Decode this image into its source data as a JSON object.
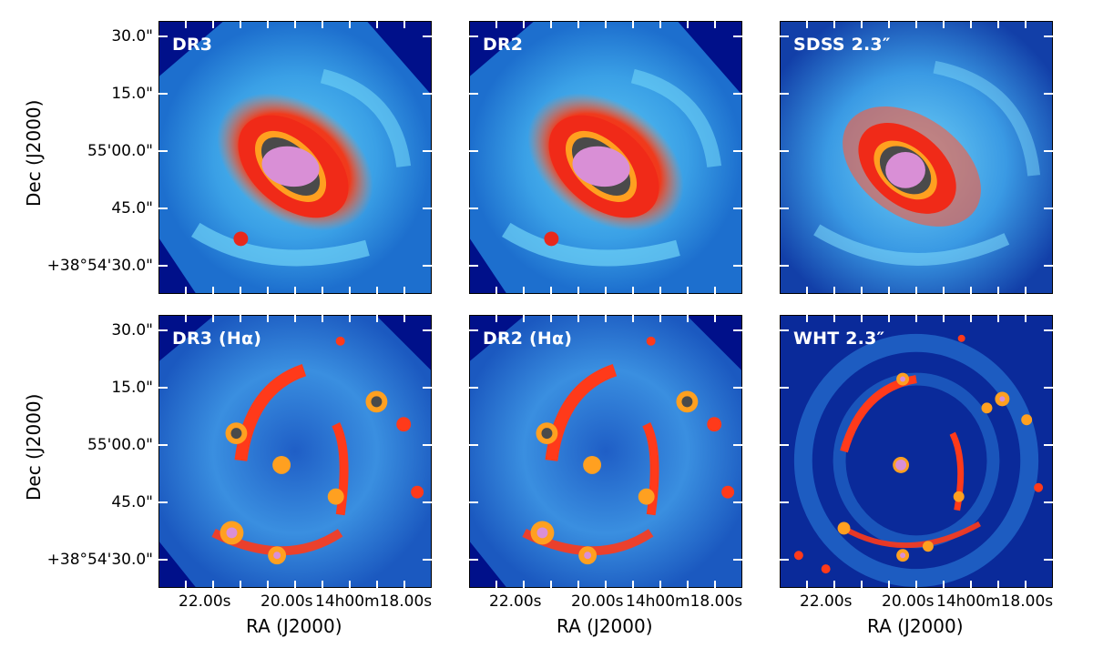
{
  "panels": [
    {
      "label": "DR3",
      "type": "continuum"
    },
    {
      "label": "DR2",
      "type": "continuum"
    },
    {
      "label": "SDSS 2.3″",
      "type": "continuum-smooth"
    },
    {
      "label": "DR3 (Hα)",
      "type": "halpha"
    },
    {
      "label": "DR2 (Hα)",
      "type": "halpha"
    },
    {
      "label": "WHT 2.3″",
      "type": "halpha-smooth"
    }
  ],
  "axes": {
    "y_title": "Dec (J2000)",
    "x_title": "RA (J2000)",
    "y_ticks": [
      "30.0\"",
      "15.0\"",
      "55'00.0\"",
      "45.0\"",
      "+38°54'30.0\""
    ],
    "x_ticks": [
      "22.00s",
      "20.00s",
      "14h00m18.00s"
    ]
  },
  "colors": {
    "background": "#00108a",
    "disk": "#2a8fe0",
    "arm": "#4fc7f5",
    "hot": "#ff3a1a",
    "warm": "#ffa020",
    "dark": "#4a4a4a",
    "core": "#d98fd6"
  }
}
